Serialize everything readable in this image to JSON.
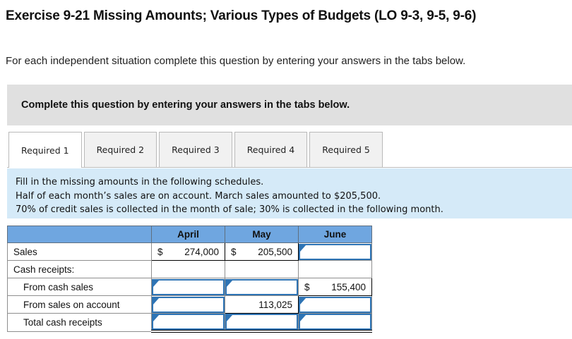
{
  "page": {
    "title": "Exercise 9-21 Missing Amounts; Various Types of Budgets (LO 9-3, 9-5, 9-6)",
    "intro": "For each independent situation complete this question by entering your answers in the tabs below."
  },
  "panel": {
    "heading": "Complete this question by entering your answers in the tabs below."
  },
  "tabs": [
    {
      "label": "Required 1",
      "active": true
    },
    {
      "label": "Required 2",
      "active": false
    },
    {
      "label": "Required 3",
      "active": false
    },
    {
      "label": "Required 4",
      "active": false
    },
    {
      "label": "Required 5",
      "active": false
    }
  ],
  "instructions": {
    "lines": [
      "Fill in the missing amounts in the following schedules.",
      "Half of each month’s sales are on account. March sales amounted to $205,500.",
      "70% of credit sales is collected in the month of sale; 30% is collected in the following month."
    ]
  },
  "schedule_table": {
    "columns": [
      "April",
      "May",
      "June"
    ],
    "rows": [
      {
        "label": "Sales",
        "cells": [
          {
            "type": "static",
            "prefix": "$",
            "value": "274,000"
          },
          {
            "type": "static",
            "prefix": "$",
            "value": "205,500"
          },
          {
            "type": "input",
            "value": ""
          }
        ]
      },
      {
        "label": "Cash receipts:",
        "cells": [
          {
            "type": "blank"
          },
          {
            "type": "blank"
          },
          {
            "type": "blank"
          }
        ]
      },
      {
        "label": "From cash sales",
        "cells": [
          {
            "type": "input",
            "value": ""
          },
          {
            "type": "input",
            "value": ""
          },
          {
            "type": "static",
            "prefix": "$",
            "value": "155,400"
          }
        ]
      },
      {
        "label": "From sales on account",
        "cells": [
          {
            "type": "input",
            "value": ""
          },
          {
            "type": "static",
            "prefix": "",
            "value": "113,025"
          },
          {
            "type": "input",
            "value": ""
          }
        ]
      },
      {
        "label": "Total cash receipts",
        "cells": [
          {
            "type": "input",
            "value": ""
          },
          {
            "type": "input",
            "value": ""
          },
          {
            "type": "input",
            "value": ""
          }
        ]
      }
    ]
  },
  "colors": {
    "table_header_blue": "#6fa6e0",
    "input_border_blue": "#2e74b5",
    "info_box_blue": "#d5eaf8",
    "panel_gray": "#e0e0e0"
  }
}
